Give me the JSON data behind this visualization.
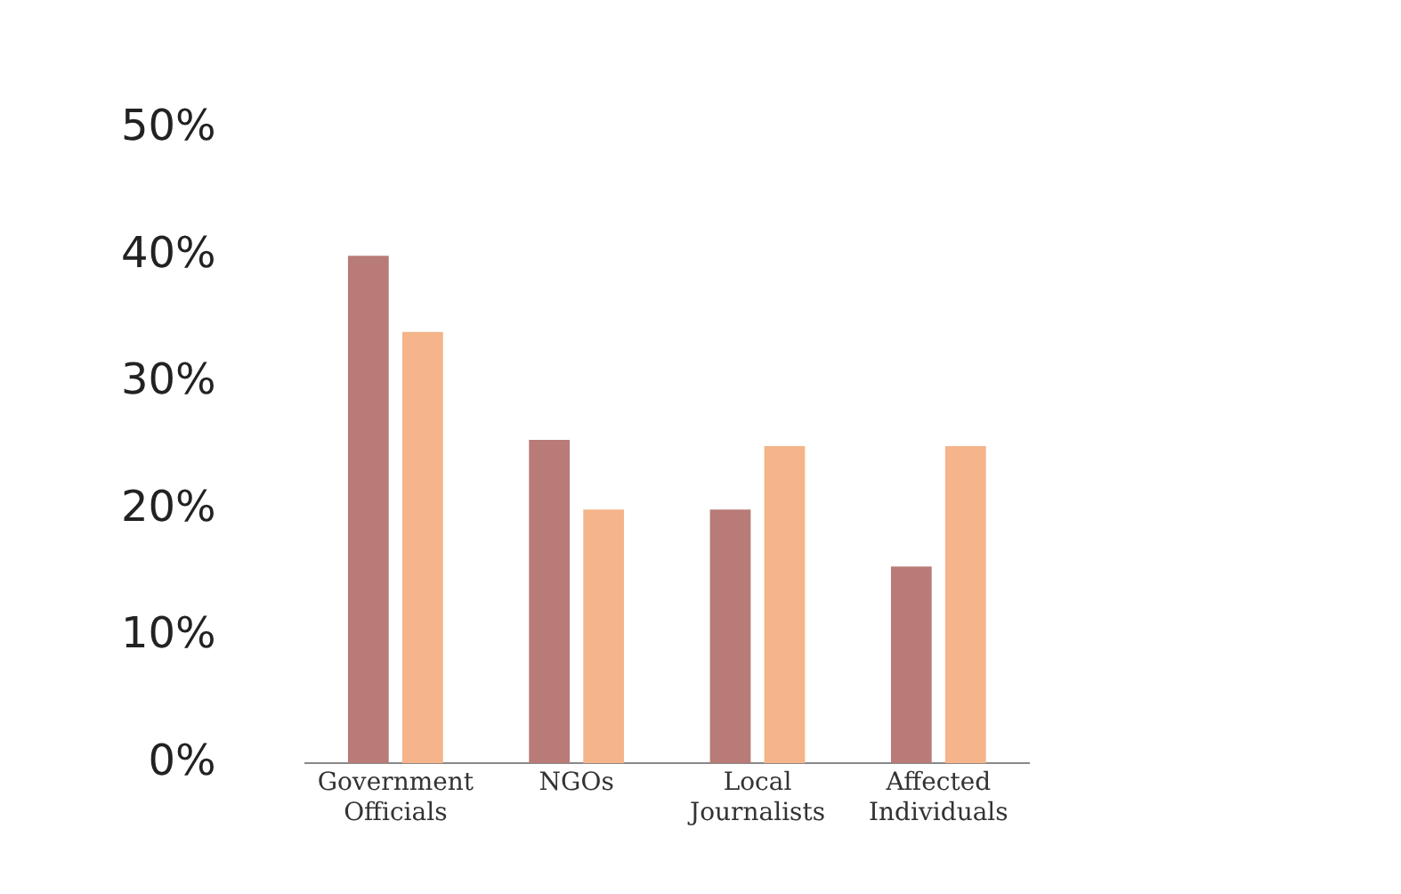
{
  "chart_data": {
    "type": "bar",
    "categories": [
      "Government Officials",
      "NGOs",
      "Local Journalists",
      "Affected Individuals"
    ],
    "series": [
      {
        "color": "#b87b78",
        "values": [
          40,
          25.5,
          20,
          15.5
        ]
      },
      {
        "color": "#f5b48a",
        "values": [
          34,
          20,
          25,
          25
        ]
      }
    ],
    "ylim": [
      0,
      50
    ],
    "yticks": [
      {
        "value": 0,
        "label": "0%"
      },
      {
        "value": 10,
        "label": "10%"
      },
      {
        "value": 20,
        "label": "20%"
      },
      {
        "value": 30,
        "label": "30%"
      },
      {
        "value": 40,
        "label": "40%"
      },
      {
        "value": 50,
        "label": "50%"
      }
    ],
    "grid": false,
    "legend": false
  }
}
